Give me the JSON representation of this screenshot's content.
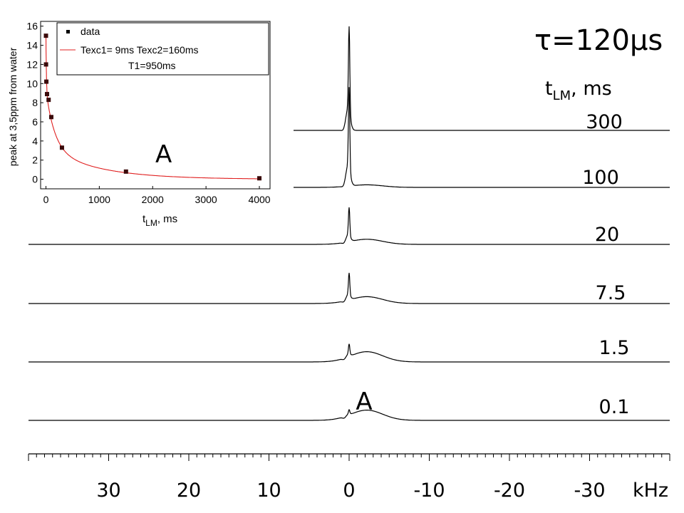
{
  "chart_data": [
    {
      "type": "line",
      "subtype": "stacked-spectra",
      "title": "τ=120μs",
      "series_label_header": "t_LM, ms",
      "series_header_main": "t",
      "series_header_sub": "LM",
      "series_header_tail": ", ms",
      "xunit": "kHz",
      "x_ticks": [
        30,
        20,
        10,
        0,
        -10,
        -20,
        -30
      ],
      "x_tick_labels": [
        "30",
        "20",
        "10",
        "0",
        "-10",
        "-20",
        "-30"
      ],
      "xlim": [
        40,
        -40
      ],
      "series": [
        {
          "name": "300",
          "peak_x": 0,
          "narrow_height": 1.0,
          "broad_height": 0.0,
          "x_start": 7.0
        },
        {
          "name": "100",
          "peak_x": 0,
          "narrow_height": 0.95,
          "broad_height": 0.03,
          "x_start": 7.0
        },
        {
          "name": "20",
          "peak_x": 0,
          "narrow_height": 0.33,
          "broad_height": 0.06
        },
        {
          "name": "7.5",
          "peak_x": 0,
          "narrow_height": 0.26,
          "broad_height": 0.08
        },
        {
          "name": "1.5",
          "peak_x": 0,
          "narrow_height": 0.12,
          "broad_height": 0.12
        },
        {
          "name": "0.1",
          "peak_x": 0,
          "narrow_height": 0.05,
          "broad_height": 0.12
        }
      ],
      "annotation": "A",
      "annotation_position": "above the 0.1 ms trace, near 0 kHz"
    },
    {
      "type": "scatter",
      "role": "inset",
      "inset_position": "top-left",
      "xlabel_main": "t",
      "xlabel_sub": "LM",
      "xlabel_tail": ", ms",
      "ylabel": "peak at 3,5ppm from water",
      "x_ticks": [
        0,
        1000,
        2000,
        3000,
        4000
      ],
      "y_ticks": [
        0,
        2,
        4,
        6,
        8,
        10,
        12,
        14,
        16
      ],
      "xlim": [
        -100,
        4200
      ],
      "ylim": [
        -1,
        16.5
      ],
      "points": [
        {
          "x": 0.1,
          "y": 15.0
        },
        {
          "x": 1.5,
          "y": 12.0
        },
        {
          "x": 7.5,
          "y": 10.2
        },
        {
          "x": 20,
          "y": 8.9
        },
        {
          "x": 50,
          "y": 8.3
        },
        {
          "x": 100,
          "y": 6.5
        },
        {
          "x": 300,
          "y": 3.3
        },
        {
          "x": 1500,
          "y": 0.8
        },
        {
          "x": 4000,
          "y": 0.1
        }
      ],
      "fit": {
        "color": "#e02020",
        "components": [
          {
            "amplitude": 5.6,
            "time_constant": 9
          },
          {
            "amplitude": 6.0,
            "time_constant": 160
          },
          {
            "amplitude": 3.3,
            "time_constant": 950
          }
        ]
      },
      "legend": {
        "placement": "top",
        "data_label": "data",
        "fit_label_line1": "Texc1= 9ms  Texc2=160ms",
        "fit_label_line2": "T1=950ms"
      },
      "annotation": "A",
      "annotation_position": "inside inset, right of the curve near 2000 ms"
    }
  ],
  "colors": {
    "trace": "#000000",
    "fit": "#e02020",
    "marker": "#3a0a0a"
  }
}
